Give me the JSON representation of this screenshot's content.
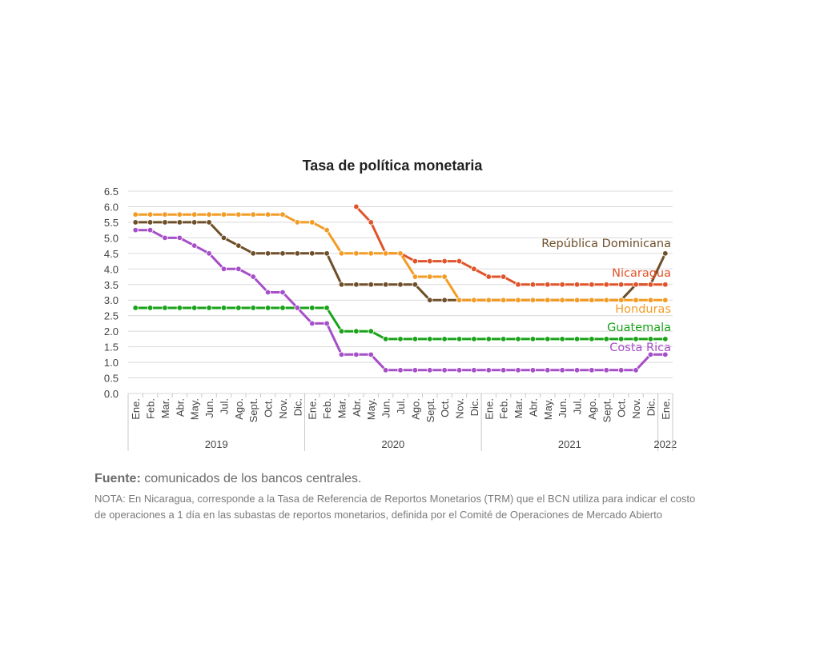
{
  "chart_data": {
    "type": "line",
    "title": "Tasa de política monetaria",
    "xlabel": "",
    "ylabel": "",
    "ylim": [
      0,
      6.5
    ],
    "yticks": [
      "0.0",
      "0.5",
      "1.0",
      "1.5",
      "2.0",
      "2.5",
      "3.0",
      "3.5",
      "4.0",
      "4.5",
      "5.0",
      "5.5",
      "6.0",
      "6.5"
    ],
    "grid": true,
    "legend": "inline labels at right end of lines",
    "categories": [
      "Ene.",
      "Feb.",
      "Mar.",
      "Abr.",
      "May.",
      "Jun.",
      "Jul.",
      "Ago.",
      "Sept.",
      "Oct.",
      "Nov.",
      "Dic.",
      "Ene.",
      "Feb.",
      "Mar.",
      "Abr.",
      "May.",
      "Jun.",
      "Jul.",
      "Ago.",
      "Sept.",
      "Oct.",
      "Nov.",
      "Dic.",
      "Ene.",
      "Feb.",
      "Mar.",
      "Abr.",
      "May.",
      "Jun.",
      "Jul.",
      "Ago.",
      "Sept.",
      "Oct.",
      "Nov.",
      "Dic.",
      "Ene."
    ],
    "years": [
      {
        "label": "2019",
        "start": 0,
        "count": 12
      },
      {
        "label": "2020",
        "start": 12,
        "count": 12
      },
      {
        "label": "2021",
        "start": 24,
        "count": 12
      },
      {
        "label": "2022",
        "start": 36,
        "count": 1
      }
    ],
    "series": [
      {
        "name": "República Dominicana",
        "color": "#6e4f2a",
        "label_color": "#6e4f2a",
        "values": [
          5.5,
          5.5,
          5.5,
          5.5,
          5.5,
          5.5,
          5.0,
          4.75,
          4.5,
          4.5,
          4.5,
          4.5,
          4.5,
          4.5,
          3.5,
          3.5,
          3.5,
          3.5,
          3.5,
          3.5,
          3.0,
          3.0,
          3.0,
          3.0,
          3.0,
          3.0,
          3.0,
          3.0,
          3.0,
          3.0,
          3.0,
          3.0,
          3.0,
          3.0,
          3.5,
          3.5,
          4.5
        ]
      },
      {
        "name": "Nicaragua",
        "color": "#e0542a",
        "label_color": "#e0542a",
        "values": [
          null,
          null,
          null,
          null,
          null,
          null,
          null,
          null,
          null,
          null,
          null,
          null,
          null,
          null,
          null,
          6.0,
          5.5,
          4.5,
          4.5,
          4.25,
          4.25,
          4.25,
          4.25,
          4.0,
          3.75,
          3.75,
          3.5,
          3.5,
          3.5,
          3.5,
          3.5,
          3.5,
          3.5,
          3.5,
          3.5,
          3.5,
          3.5
        ]
      },
      {
        "name": "Honduras",
        "color": "#f39c25",
        "label_color": "#f39c25",
        "values": [
          5.75,
          5.75,
          5.75,
          5.75,
          5.75,
          5.75,
          5.75,
          5.75,
          5.75,
          5.75,
          5.75,
          5.5,
          5.5,
          5.25,
          4.5,
          4.5,
          4.5,
          4.5,
          4.5,
          3.75,
          3.75,
          3.75,
          3.0,
          3.0,
          3.0,
          3.0,
          3.0,
          3.0,
          3.0,
          3.0,
          3.0,
          3.0,
          3.0,
          3.0,
          3.0,
          3.0,
          3.0
        ]
      },
      {
        "name": "Guatemala",
        "color": "#1aa31a",
        "label_color": "#1aa31a",
        "values": [
          2.75,
          2.75,
          2.75,
          2.75,
          2.75,
          2.75,
          2.75,
          2.75,
          2.75,
          2.75,
          2.75,
          2.75,
          2.75,
          2.75,
          2.0,
          2.0,
          2.0,
          1.75,
          1.75,
          1.75,
          1.75,
          1.75,
          1.75,
          1.75,
          1.75,
          1.75,
          1.75,
          1.75,
          1.75,
          1.75,
          1.75,
          1.75,
          1.75,
          1.75,
          1.75,
          1.75,
          1.75
        ]
      },
      {
        "name": "Costa Rica",
        "color": "#a64fc8",
        "label_color": "#a64fc8",
        "values": [
          5.25,
          5.25,
          5.0,
          5.0,
          4.75,
          4.5,
          4.0,
          4.0,
          3.75,
          3.25,
          3.25,
          2.75,
          2.25,
          2.25,
          1.25,
          1.25,
          1.25,
          0.75,
          0.75,
          0.75,
          0.75,
          0.75,
          0.75,
          0.75,
          0.75,
          0.75,
          0.75,
          0.75,
          0.75,
          0.75,
          0.75,
          0.75,
          0.75,
          0.75,
          0.75,
          1.25,
          1.25
        ]
      }
    ]
  },
  "source": {
    "label": "Fuente:",
    "text": " comunicados de los bancos centrales.",
    "note": "NOTA: En Nicaragua, corresponde a la Tasa de Referencia de Reportos Monetarios (TRM) que el BCN utiliza para indicar el costo de operaciones a 1 día en las subastas de reportos monetarios, definida por el Comité de Operaciones de Mercado Abierto"
  }
}
